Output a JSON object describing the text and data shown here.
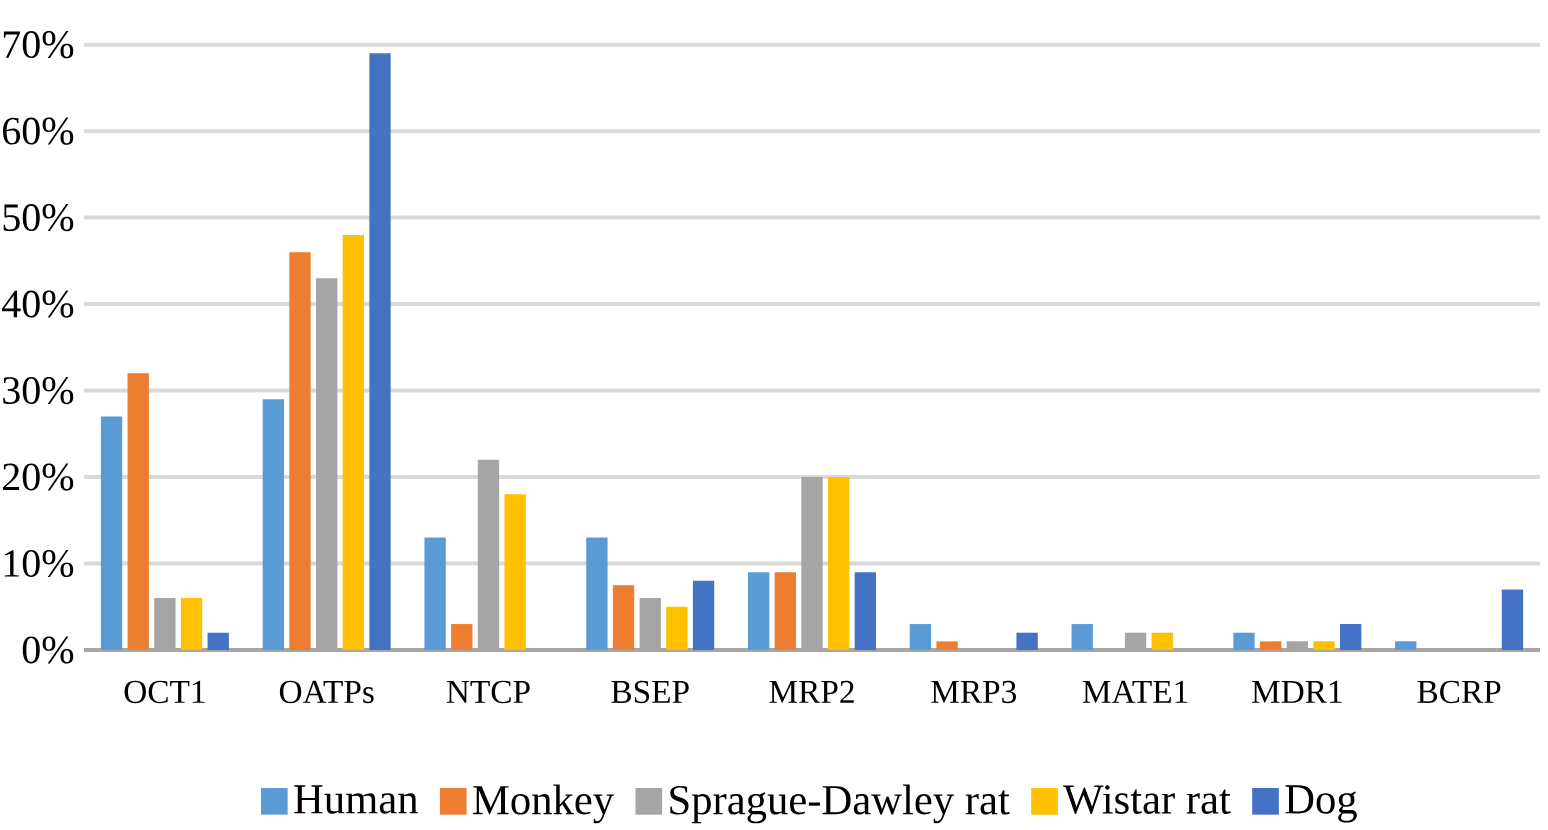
{
  "chart_data": {
    "type": "bar",
    "categories": [
      "OCT1",
      "OATPs",
      "NTCP",
      "BSEP",
      "MRP2",
      "MRP3",
      "MATE1",
      "MDR1",
      "BCRP"
    ],
    "series": [
      {
        "name": "Human",
        "color": "#5b9bd5",
        "values": [
          27,
          29,
          13,
          13,
          9,
          3,
          3,
          2,
          1
        ]
      },
      {
        "name": "Monkey",
        "color": "#ed7d31",
        "values": [
          32,
          46,
          3,
          7.5,
          9,
          1,
          null,
          1,
          null
        ]
      },
      {
        "name": "Sprague-Dawley rat",
        "color": "#a5a5a5",
        "values": [
          6,
          43,
          22,
          6,
          20,
          null,
          2,
          1,
          null
        ]
      },
      {
        "name": "Wistar rat",
        "color": "#ffc000",
        "values": [
          6,
          48,
          18,
          5,
          20,
          null,
          2,
          1,
          null
        ]
      },
      {
        "name": "Dog",
        "color": "#4472c4",
        "values": [
          2,
          69,
          null,
          8,
          9,
          2,
          null,
          3,
          7
        ]
      }
    ],
    "ylim": [
      0,
      70
    ],
    "yticks": [
      {
        "value": 0,
        "label": "0%"
      },
      {
        "value": 10,
        "label": "10%"
      },
      {
        "value": 20,
        "label": "20%"
      },
      {
        "value": 30,
        "label": "30%"
      },
      {
        "value": 40,
        "label": "40%"
      },
      {
        "value": 50,
        "label": "50%"
      },
      {
        "value": 60,
        "label": "60%"
      },
      {
        "value": 70,
        "label": "70%"
      }
    ],
    "grid": "y",
    "legend": "bottom"
  }
}
